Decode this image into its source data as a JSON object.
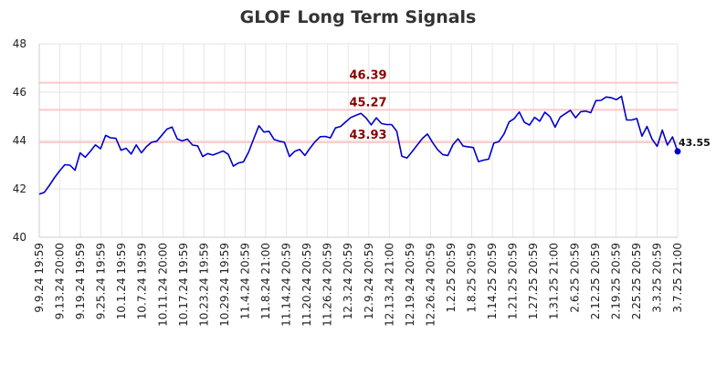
{
  "chart_data": {
    "type": "line",
    "title": "GLOF Long Term Signals",
    "xlabel": "",
    "ylabel": "",
    "ylim": [
      40,
      48
    ],
    "y_ticks": [
      40,
      42,
      44,
      46,
      48
    ],
    "x_tick_labels": [
      "9.9.24 19:59",
      "9.13.24 20:00",
      "9.19.24 19:59",
      "9.25.24 19:59",
      "10.1.24 19:59",
      "10.7.24 19:59",
      "10.11.24 20:00",
      "10.17.24 19:59",
      "10.23.24 19:59",
      "10.29.24 19:59",
      "11.4.24 20:59",
      "11.8.24 21:00",
      "11.14.24 20:59",
      "11.20.24 20:59",
      "11.26.24 20:59",
      "12.3.24 20:59",
      "12.9.24 20:59",
      "12.13.24 21:00",
      "12.19.24 20:59",
      "12.26.24 20:59",
      "1.2.25 20:59",
      "1.8.25 20:59",
      "1.14.25 20:59",
      "1.21.25 20:59",
      "1.27.25 20:59",
      "1.31.25 21:00",
      "2.6.25 20:59",
      "2.12.25 20:59",
      "2.19.25 20:59",
      "2.25.25 20:59",
      "3.3.25 20:59",
      "3.7.25 21:00"
    ],
    "grid": true,
    "line_color": "#0000cc",
    "level_line_color": "#ffc8c8",
    "level_label_color": "#8b0000",
    "levels": [
      {
        "value": 46.39,
        "label": "46.39"
      },
      {
        "value": 45.27,
        "label": "45.27"
      },
      {
        "value": 43.93,
        "label": "43.93"
      }
    ],
    "last_value_label": "43.55",
    "series": [
      {
        "values": [
          41.78,
          41.86,
          42.15,
          42.47,
          42.75,
          43.0,
          42.98,
          42.77,
          43.49,
          43.31,
          43.55,
          43.82,
          43.66,
          44.21,
          44.11,
          44.09,
          43.6,
          43.68,
          43.44,
          43.82,
          43.49,
          43.75,
          43.93,
          43.97,
          44.22,
          44.47,
          44.56,
          44.07,
          43.98,
          44.06,
          43.81,
          43.78,
          43.34,
          43.46,
          43.4,
          43.48,
          43.57,
          43.43,
          42.94,
          43.07,
          43.12,
          43.53,
          44.08,
          44.61,
          44.35,
          44.38,
          44.04,
          43.97,
          43.93,
          43.34,
          43.55,
          43.63,
          43.38,
          43.68,
          43.95,
          44.16,
          44.17,
          44.11,
          44.52,
          44.58,
          44.77,
          44.95,
          45.04,
          45.12,
          44.93,
          44.65,
          44.94,
          44.7,
          44.66,
          44.66,
          44.39,
          43.35,
          43.28,
          43.54,
          43.81,
          44.08,
          44.27,
          43.92,
          43.62,
          43.42,
          43.38,
          43.83,
          44.07,
          43.77,
          43.74,
          43.71,
          43.13,
          43.19,
          43.23,
          43.89,
          43.96,
          44.27,
          44.77,
          44.91,
          45.18,
          44.75,
          44.64,
          44.96,
          44.8,
          45.17,
          44.99,
          44.55,
          44.97,
          45.11,
          45.25,
          44.94,
          45.19,
          45.22,
          45.15,
          45.65,
          45.66,
          45.8,
          45.77,
          45.69,
          45.83,
          44.85,
          44.85,
          44.91,
          44.18,
          44.58,
          44.06,
          43.76,
          44.43,
          43.81,
          44.15,
          43.55
        ]
      }
    ]
  }
}
